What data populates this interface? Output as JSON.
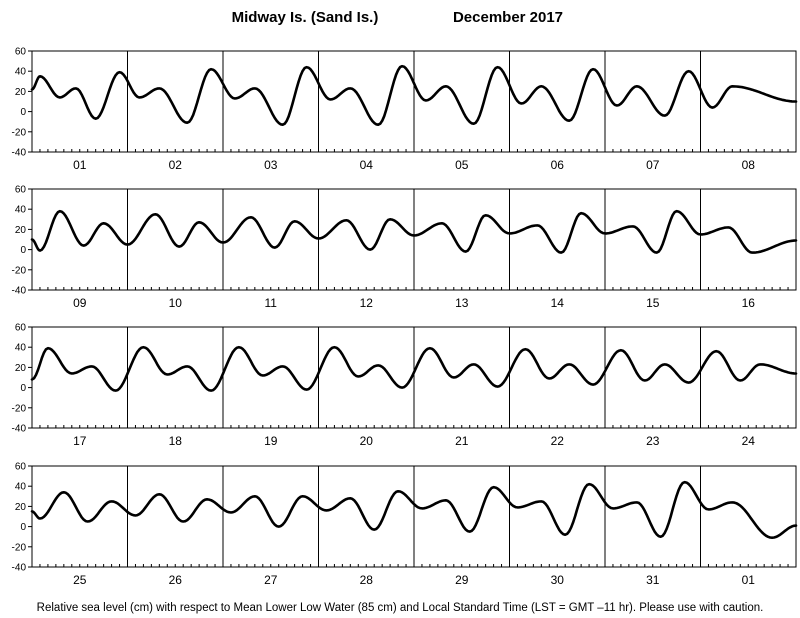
{
  "header": {
    "station": "Midway Is. (Sand Is.)",
    "period": "December   2017"
  },
  "caption": "Relative sea level (cm) with respect to Mean Lower Low Water (85 cm) and Local Standard Time (LST = GMT –11 hr). Please use with caution.",
  "chart_data": {
    "type": "line",
    "series_color": "#000000",
    "ylim": [
      -40,
      60
    ],
    "yticks": [
      -40,
      -20,
      0,
      20,
      40,
      60
    ],
    "grid": "day-separators",
    "hours_per_day": 24,
    "panels": [
      {
        "days": [
          "01",
          "02",
          "03",
          "04",
          "05",
          "06",
          "07",
          "08"
        ],
        "extrema": [
          [
            0,
            22
          ],
          [
            2,
            35
          ],
          [
            7,
            14
          ],
          [
            11,
            23
          ],
          [
            16,
            -7
          ],
          [
            22,
            39
          ],
          [
            27,
            14
          ],
          [
            32,
            23
          ],
          [
            39,
            -11
          ],
          [
            45,
            42
          ],
          [
            51,
            13
          ],
          [
            56,
            23
          ],
          [
            63,
            -13
          ],
          [
            69,
            44
          ],
          [
            75,
            12
          ],
          [
            80,
            23
          ],
          [
            87,
            -13
          ],
          [
            93,
            45
          ],
          [
            99,
            11
          ],
          [
            104,
            25
          ],
          [
            111,
            -12
          ],
          [
            117,
            44
          ],
          [
            123,
            8
          ],
          [
            128,
            25
          ],
          [
            135,
            -9
          ],
          [
            141,
            42
          ],
          [
            147,
            6
          ],
          [
            152,
            25
          ],
          [
            159,
            -4
          ],
          [
            165,
            40
          ],
          [
            171,
            4
          ],
          [
            176,
            25
          ],
          [
            192,
            10
          ]
        ]
      },
      {
        "days": [
          "09",
          "10",
          "11",
          "12",
          "13",
          "14",
          "15",
          "16"
        ],
        "extrema": [
          [
            0,
            10
          ],
          [
            2,
            -1
          ],
          [
            7,
            38
          ],
          [
            13,
            4
          ],
          [
            18,
            26
          ],
          [
            24,
            5
          ],
          [
            31,
            35
          ],
          [
            37,
            3
          ],
          [
            42,
            27
          ],
          [
            48,
            7
          ],
          [
            55,
            32
          ],
          [
            61,
            2
          ],
          [
            66,
            28
          ],
          [
            72,
            11
          ],
          [
            79,
            29
          ],
          [
            85,
            0
          ],
          [
            90,
            30
          ],
          [
            96,
            14
          ],
          [
            103,
            26
          ],
          [
            109,
            -2
          ],
          [
            114,
            34
          ],
          [
            120,
            16
          ],
          [
            127,
            24
          ],
          [
            133,
            -3
          ],
          [
            138,
            36
          ],
          [
            144,
            16
          ],
          [
            151,
            23
          ],
          [
            157,
            -3
          ],
          [
            162,
            38
          ],
          [
            168,
            15
          ],
          [
            175,
            22
          ],
          [
            181,
            -3
          ],
          [
            192,
            9
          ]
        ]
      },
      {
        "days": [
          "17",
          "18",
          "19",
          "20",
          "21",
          "22",
          "23",
          "24"
        ],
        "extrema": [
          [
            0,
            8
          ],
          [
            4,
            39
          ],
          [
            10,
            14
          ],
          [
            15,
            21
          ],
          [
            21,
            -3
          ],
          [
            28,
            40
          ],
          [
            34,
            13
          ],
          [
            39,
            21
          ],
          [
            45,
            -3
          ],
          [
            52,
            40
          ],
          [
            58,
            12
          ],
          [
            63,
            21
          ],
          [
            69,
            -2
          ],
          [
            76,
            40
          ],
          [
            82,
            11
          ],
          [
            87,
            22
          ],
          [
            93,
            0
          ],
          [
            100,
            39
          ],
          [
            106,
            10
          ],
          [
            111,
            23
          ],
          [
            117,
            1
          ],
          [
            124,
            38
          ],
          [
            130,
            9
          ],
          [
            135,
            23
          ],
          [
            141,
            3
          ],
          [
            148,
            37
          ],
          [
            154,
            7
          ],
          [
            159,
            23
          ],
          [
            165,
            5
          ],
          [
            172,
            36
          ],
          [
            178,
            7
          ],
          [
            183,
            23
          ],
          [
            192,
            14
          ]
        ]
      },
      {
        "days": [
          "25",
          "26",
          "27",
          "28",
          "29",
          "30",
          "31",
          "01"
        ],
        "extrema": [
          [
            0,
            15
          ],
          [
            2,
            8
          ],
          [
            8,
            34
          ],
          [
            14,
            5
          ],
          [
            20,
            25
          ],
          [
            26,
            11
          ],
          [
            32,
            32
          ],
          [
            38,
            5
          ],
          [
            44,
            27
          ],
          [
            50,
            14
          ],
          [
            56,
            30
          ],
          [
            62,
            0
          ],
          [
            68,
            30
          ],
          [
            74,
            16
          ],
          [
            80,
            28
          ],
          [
            86,
            -3
          ],
          [
            92,
            35
          ],
          [
            98,
            18
          ],
          [
            104,
            26
          ],
          [
            110,
            -5
          ],
          [
            116,
            39
          ],
          [
            122,
            19
          ],
          [
            128,
            25
          ],
          [
            134,
            -8
          ],
          [
            140,
            42
          ],
          [
            146,
            18
          ],
          [
            152,
            24
          ],
          [
            158,
            -10
          ],
          [
            164,
            44
          ],
          [
            170,
            17
          ],
          [
            176,
            24
          ],
          [
            186,
            -11
          ],
          [
            192,
            1
          ]
        ]
      }
    ]
  }
}
